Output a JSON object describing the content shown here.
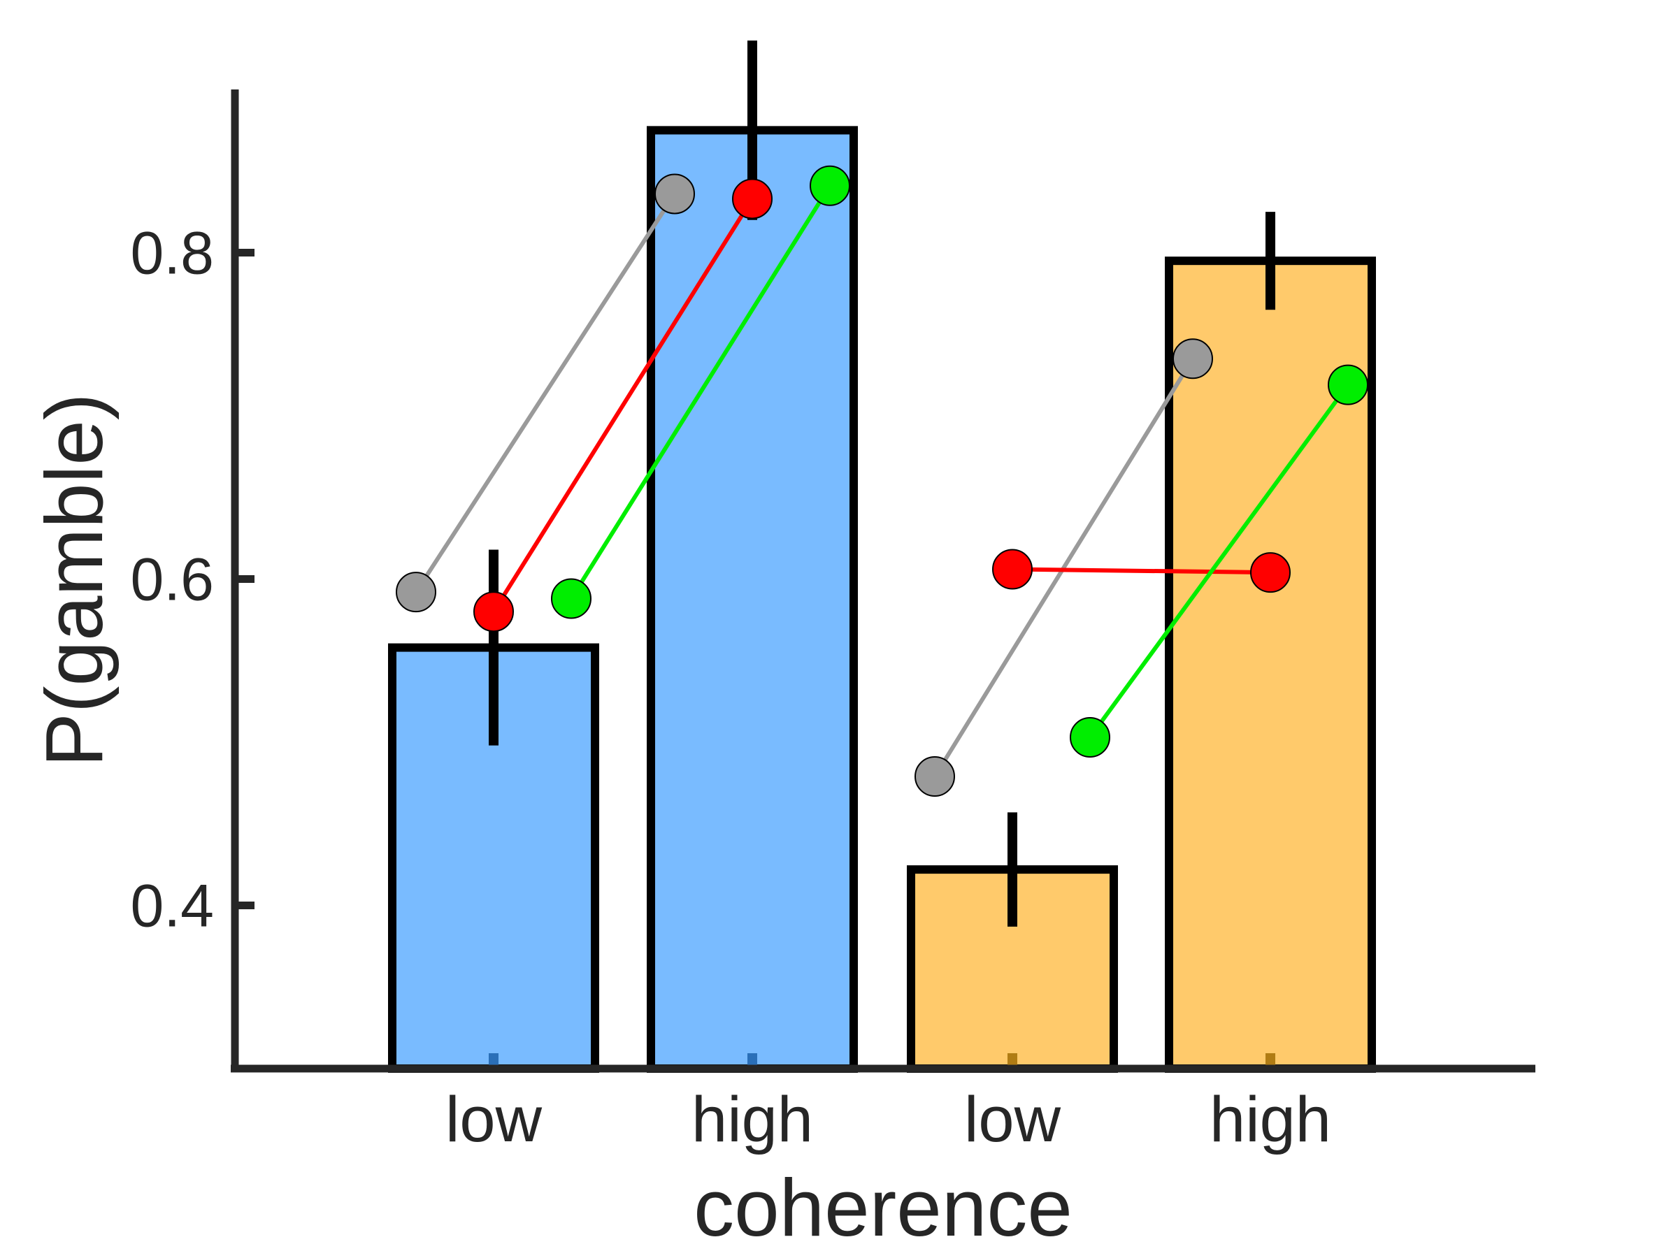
{
  "chart_data": {
    "type": "bar",
    "xlabel": "coherence",
    "ylabel": "P(gamble)",
    "ylim": [
      0.3,
      0.9
    ],
    "yticks": [
      0.4,
      0.6,
      0.8
    ],
    "ytick_labels": [
      "0.4",
      "0.6",
      "0.8"
    ],
    "categories": [
      "low",
      "high",
      "low",
      "high"
    ],
    "bar_values": [
      0.558,
      0.875,
      0.422,
      0.795
    ],
    "bar_errors": [
      0.06,
      0.055,
      0.035,
      0.03
    ],
    "bar_colors": [
      "#79bbff",
      "#79bbff",
      "#ffca6b",
      "#ffca6b"
    ],
    "groups": [
      {
        "bars": [
          0,
          1
        ],
        "series": [
          {
            "color": "#9a9a9a",
            "values": [
              0.592,
              0.836
            ]
          },
          {
            "color": "#ff0000",
            "values": [
              0.58,
              0.833
            ]
          },
          {
            "color": "#00ee00",
            "values": [
              0.588,
              0.841
            ]
          }
        ]
      },
      {
        "bars": [
          2,
          3
        ],
        "series": [
          {
            "color": "#9a9a9a",
            "values": [
              0.479,
              0.735
            ]
          },
          {
            "color": "#ff0000",
            "values": [
              0.606,
              0.604
            ]
          },
          {
            "color": "#00ee00",
            "values": [
              0.503,
              0.719
            ]
          }
        ]
      }
    ],
    "grid": false,
    "legend": "none"
  }
}
